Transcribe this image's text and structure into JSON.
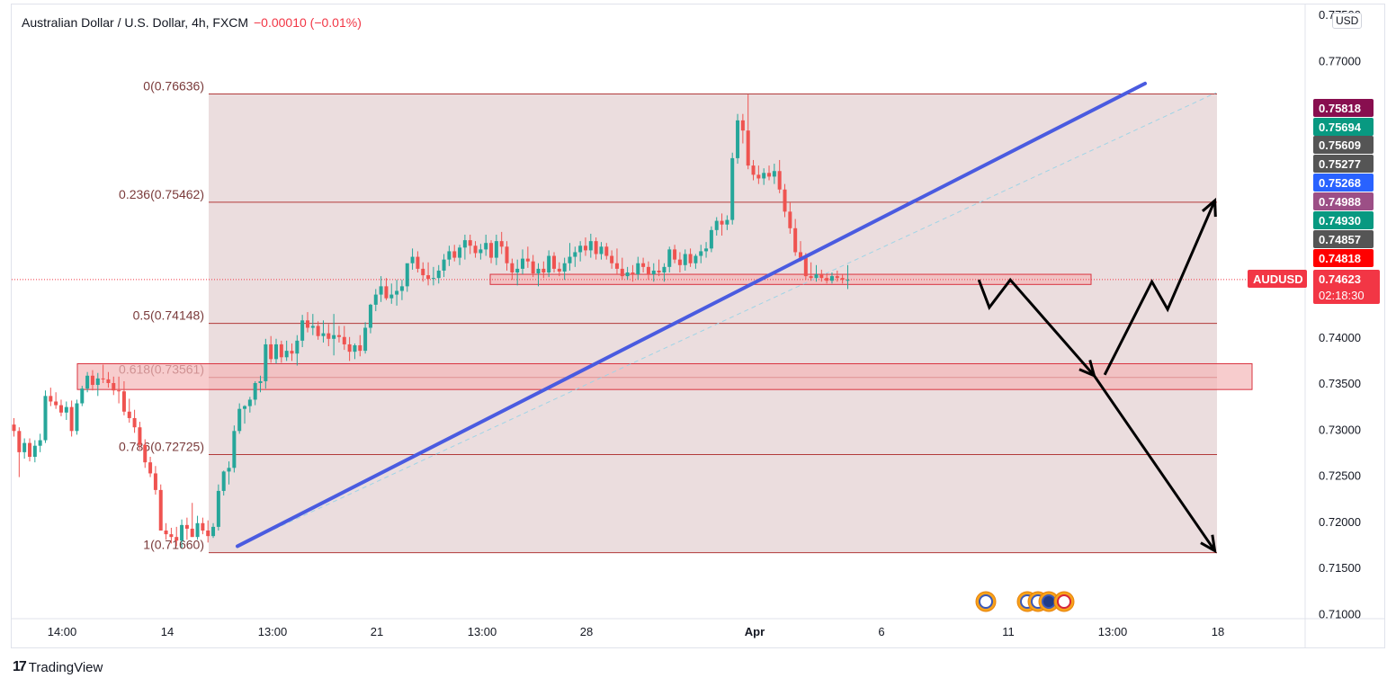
{
  "header": {
    "title": "Australian Dollar / U.S. Dollar, 4h, FXCM",
    "change": "−0.00010 (−0.01%)"
  },
  "currency_button": "USD",
  "branding": "TradingView",
  "colors": {
    "up": "#26a69a",
    "down": "#ef5350",
    "fib_zone": "#e9d9da",
    "trendline": "#4a5be0"
  },
  "chart_data": {
    "type": "candlestick",
    "symbol": "AUDUSD",
    "timeframe": "4h",
    "ylim": [
      0.71,
      0.775
    ],
    "y_ticks": [
      "0.77500",
      "0.77000",
      "0.74000",
      "0.73500",
      "0.73000",
      "0.72500",
      "0.72000",
      "0.71500",
      "0.71000"
    ],
    "x_ticks": [
      "14:00",
      "14",
      "13:00",
      "21",
      "13:00",
      "28",
      "Apr",
      "6",
      "11",
      "13:00",
      "18"
    ],
    "fib_levels": [
      {
        "label": "0(0.76636)",
        "ratio": 0,
        "price": 0.76636
      },
      {
        "label": "0.236(0.75462)",
        "ratio": 0.236,
        "price": 0.75462
      },
      {
        "label": "0.5(0.74148)",
        "ratio": 0.5,
        "price": 0.74148
      },
      {
        "label": "0.618(0.73561)",
        "ratio": 0.618,
        "price": 0.73561
      },
      {
        "label": "0.786(0.72725)",
        "ratio": 0.786,
        "price": 0.72725
      },
      {
        "label": "1(0.71660)",
        "ratio": 1,
        "price": 0.7166
      }
    ],
    "zones": [
      {
        "name": "support-zone-upper",
        "from": 0.7457,
        "to": 0.7468
      },
      {
        "name": "support-zone-fib",
        "from": 0.7343,
        "to": 0.7371
      }
    ],
    "price_tags": [
      {
        "value": "0.75818",
        "price": 0.75818,
        "color": "#880e4f"
      },
      {
        "value": "0.75694",
        "price": 0.75694,
        "color": "#089981"
      },
      {
        "value": "0.75609",
        "price": 0.75609,
        "color": "#555555"
      },
      {
        "value": "0.75277",
        "price": 0.75277,
        "color": "#555555"
      },
      {
        "value": "0.75268",
        "price": 0.75268,
        "color": "#2962ff"
      },
      {
        "value": "0.74988",
        "price": 0.74988,
        "color": "#9c4f86"
      },
      {
        "value": "0.74930",
        "price": 0.7493,
        "color": "#089981"
      },
      {
        "value": "0.74857",
        "price": 0.74857,
        "color": "#555555"
      },
      {
        "value": "0.74818",
        "price": 0.74818,
        "color": "#ff0000"
      }
    ],
    "current": {
      "symbol": "AUDUSD",
      "price": "0.74623",
      "price_value": 0.74623,
      "countdown": "02:18:30"
    },
    "projection": [
      {
        "bar": 184,
        "price": 0.7462
      },
      {
        "bar": 186,
        "price": 0.7432
      },
      {
        "bar": 190,
        "price": 0.7462
      },
      {
        "bar": 206,
        "price": 0.7358
      },
      {
        "bar": 229,
        "price": 0.7168
      },
      {
        "bar": 208,
        "price": 0.7359
      },
      {
        "bar": 217,
        "price": 0.746
      },
      {
        "bar": 220,
        "price": 0.743
      },
      {
        "bar": 229,
        "price": 0.7548
      }
    ],
    "candles": [
      [
        0.7305,
        0.7312,
        0.7292,
        0.7298
      ],
      [
        0.7298,
        0.7302,
        0.7248,
        0.7275
      ],
      [
        0.7275,
        0.729,
        0.7268,
        0.7285
      ],
      [
        0.7285,
        0.729,
        0.7265,
        0.727
      ],
      [
        0.727,
        0.7288,
        0.7264,
        0.7282
      ],
      [
        0.7282,
        0.7295,
        0.7275,
        0.7288
      ],
      [
        0.7288,
        0.7342,
        0.7285,
        0.7336
      ],
      [
        0.7336,
        0.7345,
        0.7325,
        0.733
      ],
      [
        0.733,
        0.734,
        0.7322,
        0.7326
      ],
      [
        0.7326,
        0.7332,
        0.7314,
        0.7318
      ],
      [
        0.7318,
        0.733,
        0.731,
        0.7324
      ],
      [
        0.7324,
        0.7331,
        0.7292,
        0.7298
      ],
      [
        0.7298,
        0.7332,
        0.7294,
        0.7328
      ],
      [
        0.7328,
        0.7347,
        0.7325,
        0.7344
      ],
      [
        0.7344,
        0.7362,
        0.734,
        0.7358
      ],
      [
        0.7358,
        0.7364,
        0.7342,
        0.7348
      ],
      [
        0.7348,
        0.7361,
        0.7336,
        0.7355
      ],
      [
        0.7355,
        0.737,
        0.735,
        0.7354
      ],
      [
        0.7354,
        0.7362,
        0.7345,
        0.735
      ],
      [
        0.735,
        0.7357,
        0.7337,
        0.7342
      ],
      [
        0.7342,
        0.7357,
        0.7328,
        0.7341
      ],
      [
        0.7341,
        0.7352,
        0.7315,
        0.7319
      ],
      [
        0.7319,
        0.7333,
        0.7307,
        0.7312
      ],
      [
        0.7312,
        0.7321,
        0.7296,
        0.7302
      ],
      [
        0.7302,
        0.7308,
        0.7278,
        0.7283
      ],
      [
        0.7283,
        0.7289,
        0.7258,
        0.7264
      ],
      [
        0.7264,
        0.727,
        0.7248,
        0.7252
      ],
      [
        0.7252,
        0.726,
        0.7229,
        0.7234
      ],
      [
        0.7234,
        0.724,
        0.7196,
        0.719
      ],
      [
        0.719,
        0.7198,
        0.718,
        0.7186
      ],
      [
        0.7186,
        0.7193,
        0.7176,
        0.7183
      ],
      [
        0.7183,
        0.7194,
        0.7173,
        0.7179
      ],
      [
        0.7179,
        0.7202,
        0.7171,
        0.7196
      ],
      [
        0.7196,
        0.7204,
        0.718,
        0.7192
      ],
      [
        0.7192,
        0.722,
        0.7183,
        0.7183
      ],
      [
        0.7183,
        0.7206,
        0.718,
        0.7198
      ],
      [
        0.7198,
        0.7204,
        0.7186,
        0.719
      ],
      [
        0.719,
        0.7201,
        0.7177,
        0.7184
      ],
      [
        0.7184,
        0.7198,
        0.7182,
        0.7194
      ],
      [
        0.7194,
        0.724,
        0.719,
        0.7233
      ],
      [
        0.7233,
        0.7255,
        0.7228,
        0.7254
      ],
      [
        0.7254,
        0.7265,
        0.724,
        0.7258
      ],
      [
        0.7258,
        0.7304,
        0.7253,
        0.7298
      ],
      [
        0.7298,
        0.7328,
        0.7295,
        0.7322
      ],
      [
        0.7322,
        0.7326,
        0.7306,
        0.7325
      ],
      [
        0.7325,
        0.7335,
        0.7318,
        0.7332
      ],
      [
        0.7332,
        0.7352,
        0.7326,
        0.735
      ],
      [
        0.735,
        0.7358,
        0.734,
        0.7352
      ],
      [
        0.7352,
        0.7398,
        0.7344,
        0.7392
      ],
      [
        0.7392,
        0.7401,
        0.7372,
        0.7376
      ],
      [
        0.7376,
        0.7398,
        0.7371,
        0.7392
      ],
      [
        0.7392,
        0.7396,
        0.7372,
        0.7378
      ],
      [
        0.7378,
        0.7396,
        0.7374,
        0.7385
      ],
      [
        0.7385,
        0.7393,
        0.7374,
        0.7382
      ],
      [
        0.7382,
        0.7402,
        0.7369,
        0.7396
      ],
      [
        0.7396,
        0.7424,
        0.7389,
        0.7418
      ],
      [
        0.7418,
        0.7427,
        0.7405,
        0.741
      ],
      [
        0.741,
        0.7425,
        0.7402,
        0.7412
      ],
      [
        0.7412,
        0.7417,
        0.7397,
        0.7401
      ],
      [
        0.7401,
        0.7418,
        0.7394,
        0.7404
      ],
      [
        0.7404,
        0.7414,
        0.739,
        0.7398
      ],
      [
        0.7398,
        0.7425,
        0.738,
        0.7402
      ],
      [
        0.7402,
        0.7412,
        0.7394,
        0.74
      ],
      [
        0.74,
        0.7412,
        0.7386,
        0.7392
      ],
      [
        0.7392,
        0.74,
        0.7374,
        0.7384
      ],
      [
        0.7384,
        0.7393,
        0.7376,
        0.7391
      ],
      [
        0.7391,
        0.7402,
        0.7379,
        0.7385
      ],
      [
        0.7385,
        0.7416,
        0.7382,
        0.741
      ],
      [
        0.741,
        0.7436,
        0.7404,
        0.7435
      ],
      [
        0.7435,
        0.7452,
        0.7428,
        0.7446
      ],
      [
        0.7446,
        0.7466,
        0.7438,
        0.7455
      ],
      [
        0.7455,
        0.7464,
        0.744,
        0.7442
      ],
      [
        0.7442,
        0.7458,
        0.7436,
        0.7446
      ],
      [
        0.7446,
        0.7462,
        0.7434,
        0.745
      ],
      [
        0.745,
        0.7462,
        0.744,
        0.7455
      ],
      [
        0.7455,
        0.7478,
        0.7449,
        0.748
      ],
      [
        0.748,
        0.7496,
        0.7473,
        0.7487
      ],
      [
        0.7487,
        0.7493,
        0.747,
        0.7474
      ],
      [
        0.7474,
        0.7481,
        0.746,
        0.7467
      ],
      [
        0.7467,
        0.7481,
        0.7456,
        0.7463
      ],
      [
        0.7463,
        0.7476,
        0.7456,
        0.7464
      ],
      [
        0.7464,
        0.7478,
        0.7458,
        0.7472
      ],
      [
        0.7472,
        0.749,
        0.7465,
        0.7484
      ],
      [
        0.7484,
        0.7499,
        0.7477,
        0.7493
      ],
      [
        0.7493,
        0.75,
        0.7482,
        0.7486
      ],
      [
        0.7486,
        0.75,
        0.7478,
        0.7497
      ],
      [
        0.7497,
        0.7511,
        0.7484,
        0.7505
      ],
      [
        0.7505,
        0.7511,
        0.749,
        0.7499
      ],
      [
        0.7499,
        0.7504,
        0.7486,
        0.7491
      ],
      [
        0.7491,
        0.7501,
        0.7484,
        0.7495
      ],
      [
        0.7495,
        0.7511,
        0.7488,
        0.7502
      ],
      [
        0.7502,
        0.7505,
        0.748,
        0.7486
      ],
      [
        0.7486,
        0.7511,
        0.7478,
        0.7504
      ],
      [
        0.7504,
        0.7514,
        0.749,
        0.7498
      ],
      [
        0.7498,
        0.7504,
        0.7472,
        0.748
      ],
      [
        0.748,
        0.7485,
        0.7462,
        0.747
      ],
      [
        0.747,
        0.7484,
        0.7456,
        0.7474
      ],
      [
        0.7474,
        0.7495,
        0.7468,
        0.7485
      ],
      [
        0.7485,
        0.7498,
        0.7475,
        0.7482
      ],
      [
        0.7482,
        0.7489,
        0.7465,
        0.7469
      ],
      [
        0.7469,
        0.748,
        0.7455,
        0.7474
      ],
      [
        0.7474,
        0.7482,
        0.7464,
        0.747
      ],
      [
        0.747,
        0.7494,
        0.7465,
        0.7488
      ],
      [
        0.7488,
        0.7492,
        0.747,
        0.7474
      ],
      [
        0.7474,
        0.7481,
        0.7466,
        0.7471
      ],
      [
        0.7471,
        0.7486,
        0.7462,
        0.748
      ],
      [
        0.748,
        0.7502,
        0.7472,
        0.7487
      ],
      [
        0.7487,
        0.7498,
        0.7476,
        0.7492
      ],
      [
        0.7492,
        0.7504,
        0.7482,
        0.7499
      ],
      [
        0.7499,
        0.7508,
        0.7488,
        0.7494
      ],
      [
        0.7494,
        0.7512,
        0.7486,
        0.7504
      ],
      [
        0.7504,
        0.7508,
        0.7484,
        0.749
      ],
      [
        0.749,
        0.7503,
        0.7484,
        0.7498
      ],
      [
        0.7498,
        0.7502,
        0.7484,
        0.7488
      ],
      [
        0.7488,
        0.7494,
        0.7474,
        0.748
      ],
      [
        0.748,
        0.7496,
        0.7468,
        0.7474
      ],
      [
        0.7474,
        0.7486,
        0.7462,
        0.7466
      ],
      [
        0.7466,
        0.7476,
        0.7462,
        0.747
      ],
      [
        0.747,
        0.7478,
        0.746,
        0.7468
      ],
      [
        0.7468,
        0.7487,
        0.7462,
        0.748
      ],
      [
        0.748,
        0.7486,
        0.747,
        0.7476
      ],
      [
        0.7476,
        0.7482,
        0.7462,
        0.7468
      ],
      [
        0.7468,
        0.748,
        0.746,
        0.7472
      ],
      [
        0.7472,
        0.7484,
        0.7466,
        0.747
      ],
      [
        0.747,
        0.748,
        0.746,
        0.7476
      ],
      [
        0.7476,
        0.7498,
        0.747,
        0.7495
      ],
      [
        0.7495,
        0.75,
        0.748,
        0.7484
      ],
      [
        0.7484,
        0.7492,
        0.747,
        0.7478
      ],
      [
        0.7478,
        0.7495,
        0.7472,
        0.749
      ],
      [
        0.749,
        0.7496,
        0.7476,
        0.748
      ],
      [
        0.748,
        0.749,
        0.7474,
        0.7488
      ],
      [
        0.7488,
        0.75,
        0.748,
        0.7493
      ],
      [
        0.7493,
        0.7503,
        0.7486,
        0.7496
      ],
      [
        0.7496,
        0.752,
        0.7492,
        0.7516
      ],
      [
        0.7516,
        0.753,
        0.751,
        0.7526
      ],
      [
        0.7526,
        0.7534,
        0.751,
        0.7522
      ],
      [
        0.7522,
        0.7532,
        0.7516,
        0.7527
      ],
      [
        0.7527,
        0.76,
        0.7522,
        0.7594
      ],
      [
        0.7594,
        0.7642,
        0.7588,
        0.7635
      ],
      [
        0.7635,
        0.7642,
        0.761,
        0.7624
      ],
      [
        0.7624,
        0.7663,
        0.7582,
        0.7586
      ],
      [
        0.7586,
        0.7592,
        0.757,
        0.7576
      ],
      [
        0.7576,
        0.7586,
        0.7566,
        0.7572
      ],
      [
        0.7572,
        0.7583,
        0.7565,
        0.7578
      ],
      [
        0.7578,
        0.7586,
        0.757,
        0.7574
      ],
      [
        0.7574,
        0.7588,
        0.7566,
        0.758
      ],
      [
        0.758,
        0.7592,
        0.7556,
        0.756
      ],
      [
        0.756,
        0.7566,
        0.753,
        0.7536
      ],
      [
        0.7536,
        0.7546,
        0.7512,
        0.7518
      ],
      [
        0.7518,
        0.7528,
        0.7488,
        0.7492
      ],
      [
        0.7492,
        0.7504,
        0.7482,
        0.7486
      ],
      [
        0.7486,
        0.7491,
        0.7462,
        0.7466
      ],
      [
        0.7466,
        0.7481,
        0.7461,
        0.7464
      ],
      [
        0.7464,
        0.7478,
        0.746,
        0.7468
      ],
      [
        0.7468,
        0.7473,
        0.746,
        0.7464
      ],
      [
        0.7464,
        0.7469,
        0.7458,
        0.7461
      ],
      [
        0.7461,
        0.747,
        0.7458,
        0.7466
      ],
      [
        0.7466,
        0.7472,
        0.746,
        0.7464
      ],
      [
        0.7464,
        0.7468,
        0.7458,
        0.7462
      ],
      [
        0.7462,
        0.7478,
        0.7452,
        0.7462
      ]
    ]
  }
}
